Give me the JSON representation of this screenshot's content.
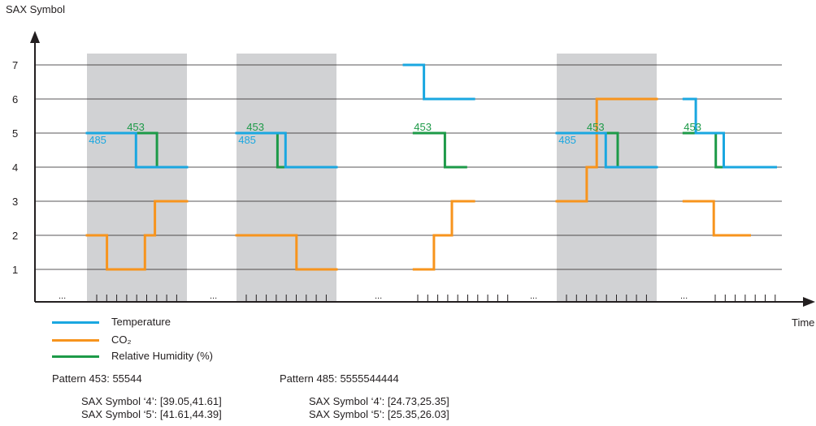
{
  "chart_data": {
    "type": "line",
    "ylabel": "SAX Symbol",
    "xlabel": "Time",
    "y_ticks": [
      "1",
      "2",
      "3",
      "4",
      "5",
      "6",
      "7"
    ],
    "x_ellipsis": "...",
    "colors": {
      "temperature": "#1aa7e0",
      "co2": "#f7941d",
      "humidity": "#1d9a48",
      "band": "#d1d2d4",
      "axis": "#231f20",
      "grid": "#231f20"
    },
    "series": [
      {
        "name": "Temperature",
        "key": "temperature"
      },
      {
        "name": "CO₂",
        "key": "co2"
      },
      {
        "name": "Relative Humidity (%)",
        "key": "humidity"
      }
    ],
    "windows": [
      {
        "highlighted": true,
        "temperature": [
          [
            0,
            5
          ],
          [
            4.9,
            5
          ],
          [
            4.9,
            4
          ],
          [
            10,
            4
          ]
        ],
        "co2": [
          [
            0,
            2
          ],
          [
            2,
            2
          ],
          [
            2,
            1
          ],
          [
            5.8,
            1
          ],
          [
            5.8,
            2
          ],
          [
            6.8,
            2
          ],
          [
            6.8,
            3
          ],
          [
            10,
            3
          ]
        ],
        "humidity": [
          [
            4,
            5
          ],
          [
            7,
            5
          ],
          [
            7,
            4
          ],
          [
            9.2,
            4
          ]
        ],
        "annotations": [
          {
            "text": "485",
            "series": "temperature",
            "at": [
              0.1,
              5
            ]
          },
          {
            "text": "453",
            "series": "humidity",
            "at": [
              4,
              5
            ]
          }
        ]
      },
      {
        "highlighted": true,
        "temperature": [
          [
            0,
            5
          ],
          [
            4.9,
            5
          ],
          [
            4.9,
            4
          ],
          [
            10,
            4
          ]
        ],
        "co2": [
          [
            0,
            2
          ],
          [
            6,
            2
          ],
          [
            6,
            1
          ],
          [
            10,
            1
          ]
        ],
        "humidity": [
          [
            1,
            5
          ],
          [
            4.1,
            5
          ],
          [
            4.1,
            4
          ],
          [
            6.2,
            4
          ]
        ],
        "annotations": [
          {
            "text": "485",
            "series": "temperature",
            "at": [
              0.1,
              5
            ]
          },
          {
            "text": "453",
            "series": "humidity",
            "at": [
              1,
              5
            ]
          }
        ]
      },
      {
        "highlighted": false,
        "temperature": [
          [
            0,
            7
          ],
          [
            2,
            7
          ],
          [
            2,
            6
          ],
          [
            7,
            6
          ]
        ],
        "co2": [
          [
            1,
            1
          ],
          [
            3,
            1
          ],
          [
            3,
            2
          ],
          [
            4.8,
            2
          ],
          [
            4.8,
            3
          ],
          [
            7,
            3
          ]
        ],
        "humidity": [
          [
            1,
            5
          ],
          [
            4.1,
            5
          ],
          [
            4.1,
            4
          ],
          [
            6.2,
            4
          ]
        ],
        "annotations": [
          {
            "text": "453",
            "series": "humidity",
            "at": [
              1,
              5
            ]
          }
        ]
      },
      {
        "highlighted": true,
        "temperature": [
          [
            0,
            5
          ],
          [
            4.9,
            5
          ],
          [
            4.9,
            4
          ],
          [
            10,
            4
          ]
        ],
        "co2": [
          [
            0,
            3
          ],
          [
            3,
            3
          ],
          [
            3,
            4
          ],
          [
            4,
            4
          ],
          [
            4,
            6
          ],
          [
            10,
            6
          ]
        ],
        "humidity": [
          [
            3,
            5
          ],
          [
            6.1,
            5
          ],
          [
            6.1,
            4
          ],
          [
            8.1,
            4
          ]
        ],
        "annotations": [
          {
            "text": "485",
            "series": "temperature",
            "at": [
              0.1,
              5
            ]
          },
          {
            "text": "453",
            "series": "humidity",
            "at": [
              3,
              5
            ]
          }
        ]
      },
      {
        "highlighted": false,
        "temperature": [
          [
            1,
            6
          ],
          [
            2.2,
            6
          ],
          [
            2.2,
            5
          ],
          [
            5,
            5
          ],
          [
            5,
            4
          ],
          [
            10.2,
            4
          ]
        ],
        "co2": [
          [
            1,
            3
          ],
          [
            4,
            3
          ],
          [
            4,
            2
          ],
          [
            7.6,
            2
          ]
        ],
        "humidity": [
          [
            1,
            5
          ],
          [
            4.2,
            5
          ],
          [
            4.2,
            4
          ],
          [
            6.3,
            4
          ]
        ],
        "annotations": [
          {
            "text": "453",
            "series": "humidity",
            "at": [
              1,
              5
            ]
          }
        ]
      }
    ],
    "patterns": [
      {
        "title": "Pattern 453: 55544",
        "ranges": [
          "SAX Symbol ‘4’: [39.05,41.61]",
          "SAX Symbol ‘5’: [41.61,44.39]"
        ]
      },
      {
        "title": "Pattern 485: 5555544444",
        "ranges": [
          "SAX Symbol ‘4’: [24.73,25.35]",
          "SAX Symbol ‘5’: [25.35,26.03]"
        ]
      }
    ]
  }
}
